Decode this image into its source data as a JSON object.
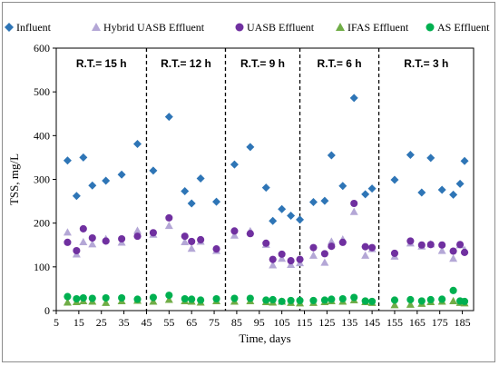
{
  "chart_data": {
    "type": "scatter",
    "title": "",
    "xlabel": "Time, days",
    "ylabel": "TSS, mg/L",
    "xlim": [
      5,
      190
    ],
    "ylim": [
      0,
      600
    ],
    "xticks": [
      5,
      15,
      25,
      35,
      45,
      55,
      65,
      75,
      85,
      95,
      105,
      115,
      125,
      135,
      145,
      155,
      165,
      175,
      185
    ],
    "yticks": [
      0,
      100,
      200,
      300,
      400,
      500,
      600
    ],
    "grid": "none",
    "legend_position": "top",
    "period_dividers": [
      45,
      80,
      113,
      148
    ],
    "periods": [
      "R.T.= 15 h",
      "R.T.= 12 h",
      "R.T.= 9 h",
      "R.T.= 6 h",
      "R.T.= 3 h"
    ],
    "series": [
      {
        "name": "Influent",
        "marker": "diamond",
        "color": "#2e75b6",
        "points": [
          [
            10,
            343
          ],
          [
            14,
            262
          ],
          [
            17,
            350
          ],
          [
            21,
            286
          ],
          [
            27,
            297
          ],
          [
            34,
            311
          ],
          [
            41,
            381
          ],
          [
            48,
            320
          ],
          [
            55,
            443
          ],
          [
            62,
            273
          ],
          [
            65,
            245
          ],
          [
            69,
            302
          ],
          [
            76,
            249
          ],
          [
            84,
            334
          ],
          [
            91,
            374
          ],
          [
            98,
            281
          ],
          [
            101,
            205
          ],
          [
            105,
            232
          ],
          [
            109,
            217
          ],
          [
            113,
            208
          ],
          [
            119,
            248
          ],
          [
            124,
            251
          ],
          [
            127,
            355
          ],
          [
            132,
            285
          ],
          [
            137,
            486
          ],
          [
            142,
            266
          ],
          [
            145,
            279
          ],
          [
            155,
            299
          ],
          [
            162,
            356
          ],
          [
            167,
            270
          ],
          [
            171,
            349
          ],
          [
            176,
            276
          ],
          [
            181,
            265
          ],
          [
            184,
            290
          ],
          [
            186,
            342
          ]
        ]
      },
      {
        "name": "Hybrid UASB Effluent",
        "marker": "triangle",
        "color": "#b4a7d6",
        "points": [
          [
            10,
            179
          ],
          [
            14,
            129
          ],
          [
            17,
            157
          ],
          [
            21,
            152
          ],
          [
            27,
            164
          ],
          [
            34,
            156
          ],
          [
            41,
            183
          ],
          [
            48,
            174
          ],
          [
            55,
            194
          ],
          [
            62,
            157
          ],
          [
            65,
            142
          ],
          [
            69,
            158
          ],
          [
            76,
            137
          ],
          [
            84,
            172
          ],
          [
            91,
            182
          ],
          [
            98,
            151
          ],
          [
            101,
            104
          ],
          [
            105,
            119
          ],
          [
            109,
            105
          ],
          [
            113,
            109
          ],
          [
            119,
            126
          ],
          [
            124,
            110
          ],
          [
            127,
            158
          ],
          [
            132,
            163
          ],
          [
            137,
            226
          ],
          [
            142,
            126
          ],
          [
            145,
            141
          ],
          [
            155,
            124
          ],
          [
            162,
            154
          ],
          [
            167,
            147
          ],
          [
            171,
            152
          ],
          [
            176,
            137
          ],
          [
            181,
            119
          ],
          [
            184,
            150
          ],
          [
            186,
            139
          ]
        ]
      },
      {
        "name": "UASB Effluent",
        "marker": "circle",
        "color": "#7030a0",
        "points": [
          [
            10,
            156
          ],
          [
            14,
            137
          ],
          [
            17,
            187
          ],
          [
            21,
            166
          ],
          [
            27,
            159
          ],
          [
            34,
            164
          ],
          [
            41,
            170
          ],
          [
            48,
            178
          ],
          [
            55,
            212
          ],
          [
            62,
            170
          ],
          [
            65,
            158
          ],
          [
            69,
            162
          ],
          [
            76,
            141
          ],
          [
            84,
            182
          ],
          [
            91,
            176
          ],
          [
            98,
            154
          ],
          [
            101,
            117
          ],
          [
            105,
            129
          ],
          [
            109,
            114
          ],
          [
            113,
            117
          ],
          [
            119,
            144
          ],
          [
            124,
            130
          ],
          [
            127,
            147
          ],
          [
            132,
            156
          ],
          [
            137,
            245
          ],
          [
            142,
            146
          ],
          [
            145,
            144
          ],
          [
            155,
            131
          ],
          [
            162,
            159
          ],
          [
            167,
            150
          ],
          [
            171,
            151
          ],
          [
            176,
            150
          ],
          [
            181,
            136
          ],
          [
            184,
            151
          ],
          [
            186,
            133
          ]
        ]
      },
      {
        "name": "IFAS Effluent",
        "marker": "triangle",
        "color": "#70ad47",
        "points": [
          [
            10,
            19
          ],
          [
            14,
            20
          ],
          [
            17,
            22
          ],
          [
            21,
            21
          ],
          [
            27,
            18
          ],
          [
            34,
            22
          ],
          [
            41,
            23
          ],
          [
            48,
            21
          ],
          [
            55,
            25
          ],
          [
            62,
            22
          ],
          [
            65,
            21
          ],
          [
            69,
            19
          ],
          [
            76,
            22
          ],
          [
            84,
            21
          ],
          [
            91,
            22
          ],
          [
            98,
            20
          ],
          [
            101,
            19
          ],
          [
            105,
            21
          ],
          [
            109,
            18
          ],
          [
            113,
            17
          ],
          [
            119,
            18
          ],
          [
            124,
            20
          ],
          [
            127,
            22
          ],
          [
            132,
            21
          ],
          [
            137,
            24
          ],
          [
            142,
            20
          ],
          [
            145,
            18
          ],
          [
            155,
            13
          ],
          [
            162,
            14
          ],
          [
            167,
            16
          ],
          [
            171,
            20
          ],
          [
            176,
            21
          ],
          [
            181,
            22
          ],
          [
            184,
            18
          ],
          [
            186,
            17
          ]
        ]
      },
      {
        "name": "AS Effluent",
        "marker": "circle",
        "color": "#00b050",
        "points": [
          [
            10,
            32
          ],
          [
            14,
            27
          ],
          [
            17,
            29
          ],
          [
            21,
            28
          ],
          [
            27,
            29
          ],
          [
            34,
            29
          ],
          [
            41,
            26
          ],
          [
            48,
            30
          ],
          [
            55,
            35
          ],
          [
            62,
            27
          ],
          [
            65,
            26
          ],
          [
            69,
            24
          ],
          [
            76,
            27
          ],
          [
            84,
            28
          ],
          [
            91,
            28
          ],
          [
            98,
            24
          ],
          [
            101,
            25
          ],
          [
            105,
            21
          ],
          [
            109,
            23
          ],
          [
            113,
            23
          ],
          [
            119,
            23
          ],
          [
            124,
            24
          ],
          [
            127,
            26
          ],
          [
            132,
            27
          ],
          [
            137,
            30
          ],
          [
            142,
            22
          ],
          [
            145,
            21
          ],
          [
            155,
            24
          ],
          [
            162,
            25
          ],
          [
            167,
            22
          ],
          [
            171,
            25
          ],
          [
            176,
            26
          ],
          [
            181,
            46
          ],
          [
            184,
            22
          ],
          [
            186,
            21
          ]
        ]
      }
    ]
  }
}
